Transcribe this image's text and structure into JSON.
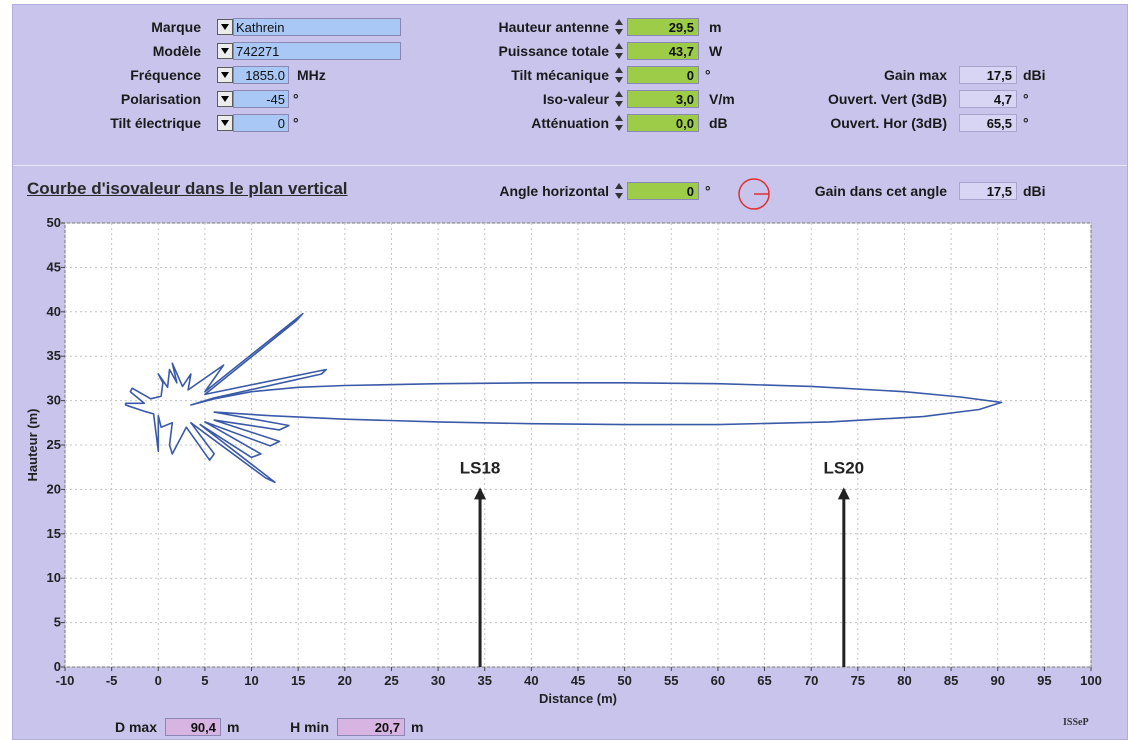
{
  "params_left": {
    "marque": {
      "label": "Marque",
      "value": "Kathrein"
    },
    "modele": {
      "label": "Modèle",
      "value": "742271"
    },
    "frequence": {
      "label": "Fréquence",
      "value": "1855.0",
      "unit": "MHz"
    },
    "polarisation": {
      "label": "Polarisation",
      "value": "-45",
      "unit": "°"
    },
    "tilt_electrique": {
      "label": "Tilt électrique",
      "value": "0",
      "unit": "°"
    }
  },
  "params_mid": {
    "hauteur_antenne": {
      "label": "Hauteur antenne",
      "value": "29,5",
      "unit": "m"
    },
    "puissance_totale": {
      "label": "Puissance totale",
      "value": "43,7",
      "unit": "W"
    },
    "tilt_mecanique": {
      "label": "Tilt mécanique",
      "value": "0",
      "unit": "°"
    },
    "iso_valeur": {
      "label": "Iso-valeur",
      "value": "3,0",
      "unit": "V/m"
    },
    "attenuation": {
      "label": "Atténuation",
      "value": "0,0",
      "unit": "dB"
    }
  },
  "params_right": {
    "gain_max": {
      "label": "Gain max",
      "value": "17,5",
      "unit": "dBi"
    },
    "ouvert_vert": {
      "label": "Ouvert. Vert (3dB)",
      "value": "4,7",
      "unit": "°"
    },
    "ouvert_hor": {
      "label": "Ouvert. Hor (3dB)",
      "value": "65,5",
      "unit": "°"
    }
  },
  "section_title": "Courbe d'isovaleur dans le plan vertical",
  "angle_horizontal": {
    "label": "Angle horizontal",
    "value": "0",
    "unit": "°"
  },
  "gain_angle": {
    "label": "Gain dans cet angle",
    "value": "17,5",
    "unit": "dBi"
  },
  "footer": {
    "dmax": {
      "label": "D max",
      "value": "90,4",
      "unit": "m"
    },
    "hmin": {
      "label": "H min",
      "value": "20,7",
      "unit": "m"
    },
    "mark": "ISSeP"
  },
  "colors": {
    "curve": "#3a5aa8",
    "field_green": "#9ccc48",
    "field_blue": "#a9c8f6",
    "compass": "#e03030"
  },
  "chart_data": {
    "type": "line",
    "xlabel": "Distance (m)",
    "ylabel": "Hauteur (m)",
    "xlim": [
      -10,
      100
    ],
    "ylim": [
      0,
      50
    ],
    "x_ticks": [
      -10,
      -5,
      0,
      5,
      10,
      15,
      20,
      25,
      30,
      35,
      40,
      45,
      50,
      55,
      60,
      65,
      70,
      75,
      80,
      85,
      90,
      95,
      100
    ],
    "y_ticks": [
      0,
      5,
      10,
      15,
      20,
      25,
      30,
      35,
      40,
      45,
      50
    ],
    "grid": true,
    "series": [
      {
        "points": [
          [
            3.5,
            29.5
          ],
          [
            6,
            30.2
          ],
          [
            10,
            31.0
          ],
          [
            15,
            31.5
          ],
          [
            20,
            31.7
          ],
          [
            30,
            31.9
          ],
          [
            40,
            32.0
          ],
          [
            50,
            32.0
          ],
          [
            60,
            31.9
          ],
          [
            70,
            31.6
          ],
          [
            80,
            31.0
          ],
          [
            86,
            30.4
          ],
          [
            90.4,
            29.8
          ],
          [
            88,
            29.0
          ],
          [
            82,
            28.2
          ],
          [
            72,
            27.6
          ],
          [
            60,
            27.3
          ],
          [
            50,
            27.3
          ],
          [
            40,
            27.4
          ],
          [
            30,
            27.6
          ],
          [
            20,
            27.9
          ],
          [
            12,
            28.3
          ],
          [
            6,
            28.7
          ],
          [
            14,
            27.2
          ],
          [
            13,
            26.7
          ],
          [
            6,
            27.8
          ],
          [
            13,
            25.4
          ],
          [
            12,
            24.9
          ],
          [
            5,
            27.6
          ],
          [
            11,
            24.0
          ],
          [
            10,
            23.6
          ],
          [
            4.5,
            27.3
          ],
          [
            12.5,
            20.8
          ],
          [
            11.5,
            21.3
          ],
          [
            3.5,
            27.5
          ],
          [
            6,
            24.0
          ],
          [
            5.5,
            23.3
          ],
          [
            3.0,
            27.0
          ],
          [
            1.5,
            24.0
          ],
          [
            1.2,
            25.0
          ],
          [
            1.5,
            27.5
          ],
          [
            0.3,
            27.0
          ],
          [
            0.0,
            28.3
          ],
          [
            0,
            24.3
          ],
          [
            -0.5,
            28.5
          ],
          [
            -1.5,
            28.8
          ],
          [
            -3.5,
            29.5
          ],
          [
            -3.5,
            29.7
          ],
          [
            -1.5,
            29.7
          ],
          [
            -3.0,
            31.0
          ],
          [
            -2.8,
            31.4
          ],
          [
            -0.8,
            30.2
          ],
          [
            0.3,
            30.5
          ],
          [
            0.5,
            32.0
          ],
          [
            0.0,
            33.0
          ],
          [
            1.0,
            31.5
          ],
          [
            1.2,
            33.5
          ],
          [
            2.0,
            32.0
          ],
          [
            1.5,
            34.2
          ],
          [
            2.6,
            31.6
          ],
          [
            3.5,
            33.0
          ],
          [
            3.2,
            31.2
          ],
          [
            7,
            34.0
          ],
          [
            5,
            31.0
          ],
          [
            15.5,
            39.8
          ],
          [
            14.8,
            39.0
          ],
          [
            5,
            30.7
          ],
          [
            18,
            33.5
          ],
          [
            17.5,
            33.0
          ],
          [
            6,
            30.3
          ],
          [
            3.5,
            29.5
          ]
        ]
      }
    ],
    "annotations": [
      {
        "text": "LS18",
        "x": 34.5,
        "y_text": 21.8,
        "arrow_from": 20.0,
        "arrow_to": 0.0
      },
      {
        "text": "LS20",
        "x": 73.5,
        "y_text": 21.8,
        "arrow_from": 20.0,
        "arrow_to": 0.0
      }
    ]
  }
}
